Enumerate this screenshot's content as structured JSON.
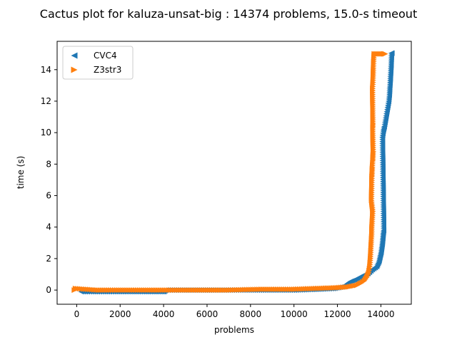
{
  "chart_data": {
    "type": "scatter",
    "title": "Cactus plot for kaluza-unsat-big : 14374 problems, 15.0-s timeout",
    "xlabel": "problems",
    "ylabel": "time (s)",
    "xlim": [
      -900,
      15400
    ],
    "ylim": [
      -0.9,
      15.8
    ],
    "xticks": [
      0,
      2000,
      4000,
      6000,
      8000,
      10000,
      12000,
      14000
    ],
    "yticks": [
      0,
      2,
      4,
      6,
      8,
      10,
      12,
      14
    ],
    "grid": false,
    "legend_position": "upper-left",
    "series": [
      {
        "name": "CVC4",
        "color": "#1f77b4",
        "marker": "triangle-left",
        "points": [
          [
            200,
            -0.1
          ],
          [
            1500,
            -0.1
          ],
          [
            3000,
            -0.1
          ],
          [
            4000,
            -0.1
          ],
          [
            4100,
            0.0
          ],
          [
            6000,
            0.0
          ],
          [
            8500,
            0.0
          ],
          [
            10000,
            0.0
          ],
          [
            11000,
            0.05
          ],
          [
            11800,
            0.1
          ],
          [
            12200,
            0.2
          ],
          [
            12400,
            0.35
          ],
          [
            12600,
            0.55
          ],
          [
            12800,
            0.65
          ],
          [
            13000,
            0.8
          ],
          [
            13200,
            0.95
          ],
          [
            13400,
            1.05
          ],
          [
            13600,
            1.3
          ],
          [
            13800,
            1.5
          ],
          [
            13900,
            1.8
          ],
          [
            13950,
            2.1
          ],
          [
            14000,
            2.4
          ],
          [
            14030,
            2.7
          ],
          [
            14060,
            3.0
          ],
          [
            14080,
            3.3
          ],
          [
            14100,
            3.6
          ],
          [
            14120,
            3.8
          ],
          [
            14060,
            9.7
          ],
          [
            14100,
            10.1
          ],
          [
            14150,
            10.4
          ],
          [
            14200,
            10.8
          ],
          [
            14250,
            11.2
          ],
          [
            14300,
            11.6
          ],
          [
            14350,
            12.0
          ],
          [
            14380,
            12.4
          ],
          [
            14400,
            12.9
          ],
          [
            14420,
            13.3
          ],
          [
            14440,
            13.8
          ],
          [
            14460,
            14.3
          ],
          [
            14480,
            15.05
          ],
          [
            14500,
            15.05
          ]
        ]
      },
      {
        "name": "Z3str3",
        "color": "#ff7f0e",
        "marker": "triangle-right",
        "points": [
          [
            -100,
            0.0
          ],
          [
            -50,
            0.1
          ],
          [
            1000,
            0.0
          ],
          [
            3000,
            0.0
          ],
          [
            5000,
            0.0
          ],
          [
            7000,
            0.0
          ],
          [
            8500,
            0.05
          ],
          [
            10000,
            0.05
          ],
          [
            11000,
            0.1
          ],
          [
            12000,
            0.15
          ],
          [
            12500,
            0.2
          ],
          [
            12900,
            0.3
          ],
          [
            13100,
            0.45
          ],
          [
            13250,
            0.6
          ],
          [
            13350,
            0.8
          ],
          [
            13450,
            1.1
          ],
          [
            13500,
            1.5
          ],
          [
            13530,
            2.0
          ],
          [
            13550,
            2.5
          ],
          [
            13570,
            3.0
          ],
          [
            13590,
            3.5
          ],
          [
            13600,
            4.0
          ],
          [
            13620,
            4.5
          ],
          [
            13640,
            5.0
          ],
          [
            13580,
            5.7
          ],
          [
            13600,
            7.2
          ],
          [
            13610,
            7.5
          ],
          [
            13620,
            7.8
          ],
          [
            13640,
            8.2
          ],
          [
            13650,
            8.5
          ],
          [
            13660,
            8.8
          ],
          [
            13640,
            10.3
          ],
          [
            13650,
            10.6
          ],
          [
            13630,
            12.8
          ],
          [
            13650,
            13.2
          ],
          [
            13660,
            13.6
          ],
          [
            13670,
            14.1
          ],
          [
            13680,
            14.5
          ],
          [
            13700,
            15.0
          ],
          [
            13900,
            15.0
          ],
          [
            14100,
            15.0
          ],
          [
            14200,
            15.0
          ]
        ]
      }
    ]
  }
}
